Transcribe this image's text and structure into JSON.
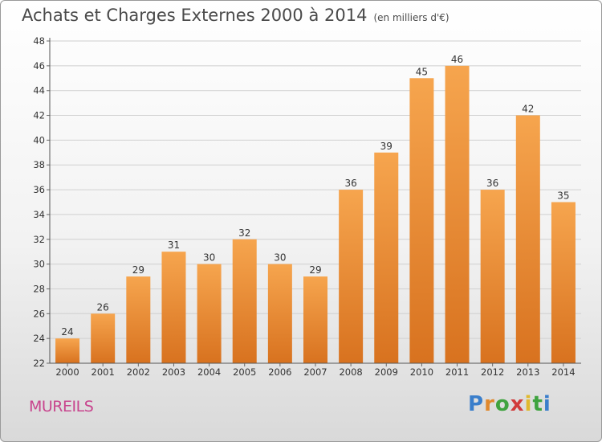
{
  "header": {
    "title": "Achats et Charges Externes 2000 à 2014",
    "unit": "(en milliers d'€)"
  },
  "footer": {
    "commune": "MUREILS",
    "brand": "Proxiti"
  },
  "colors": {
    "bar_top": "#f6a54e",
    "bar_bottom": "#d8721f",
    "title": "#4a4a4a",
    "commune": "#c8458e",
    "grid": "#d0d0d0"
  },
  "chart_data": {
    "type": "bar",
    "title": "Achats et Charges Externes 2000 à 2014",
    "subtitle": "(en milliers d'€)",
    "xlabel": "",
    "ylabel": "",
    "categories": [
      "2000",
      "2001",
      "2002",
      "2003",
      "2004",
      "2005",
      "2006",
      "2007",
      "2008",
      "2009",
      "2010",
      "2011",
      "2012",
      "2013",
      "2014"
    ],
    "values": [
      24,
      26,
      29,
      31,
      30,
      32,
      30,
      29,
      36,
      39,
      45,
      46,
      36,
      42,
      35
    ],
    "ylim": [
      22,
      48
    ],
    "yticks": [
      22,
      24,
      26,
      28,
      30,
      32,
      34,
      36,
      38,
      40,
      42,
      44,
      46,
      48
    ],
    "grid": true,
    "legend": "none",
    "data_labels": true
  }
}
